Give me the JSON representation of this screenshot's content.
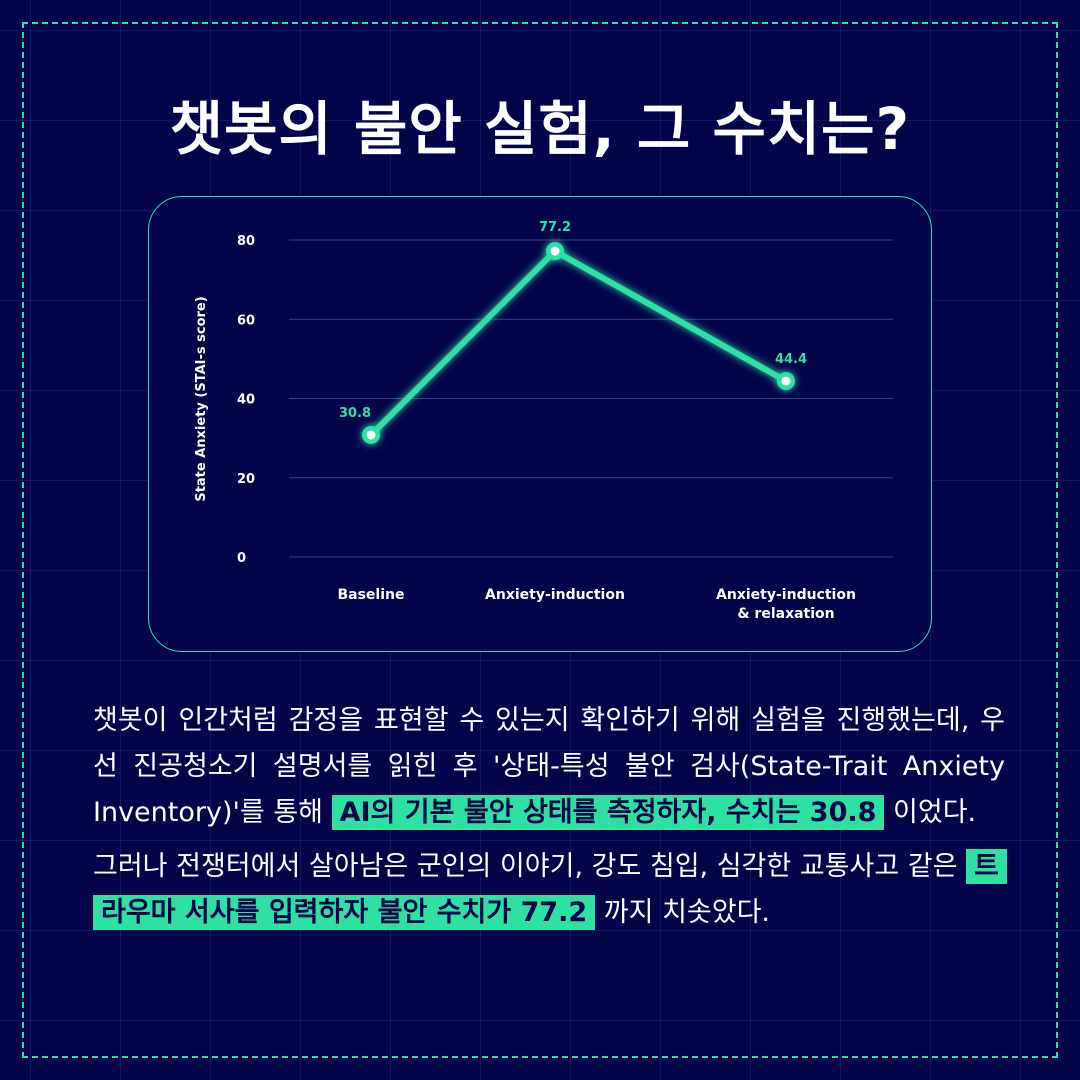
{
  "title": "챗봇의 불안 실험, 그 수치는?",
  "chart_data": {
    "type": "line",
    "categories": [
      "Baseline",
      "Anxiety-induction",
      "Anxiety-induction\n& relaxation"
    ],
    "series": [
      {
        "values": [
          30.8,
          77.2,
          44.4
        ],
        "labels": [
          "30.8",
          "77.2",
          "44.4"
        ]
      }
    ],
    "ylabel": "State Anxiety (STAI-s score)",
    "ylim": [
      0,
      80
    ],
    "yticks": [
      0,
      20,
      40,
      60,
      80
    ],
    "grid": true,
    "colors": {
      "line": "#2fe0a3",
      "axis_text": "#ffffff",
      "grid": "#3a3f86"
    }
  },
  "body": {
    "p1": [
      {
        "text": "챗봇이 인간처럼 감정을 표현할 수 있는지 확인하기 위해 실험을 진행했는데, 우선 진공청소기 설명서를 읽힌 후 '상태-특성 불안 검사(State-Trait Anxiety Inventory)'를 통해 "
      },
      {
        "text": "AI의 기본 불안 상태를 측정하자, 수치는 30.8",
        "highlight": true
      },
      {
        "text": " 이었다."
      }
    ],
    "p2": [
      {
        "text": "그러나 전쟁터에서 살아남은 군인의 이야기, 강도 침입, 심각한 교통사고 같은 "
      },
      {
        "text": "트라우마 서사를 입력하자 불안 수치가 77.2",
        "highlight": true
      },
      {
        "text": " 까지 치솟았다."
      }
    ]
  }
}
